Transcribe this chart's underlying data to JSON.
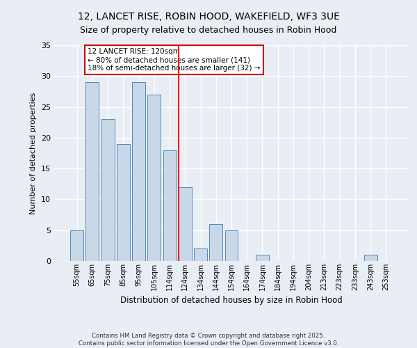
{
  "title1": "12, LANCET RISE, ROBIN HOOD, WAKEFIELD, WF3 3UE",
  "title2": "Size of property relative to detached houses in Robin Hood",
  "xlabel": "Distribution of detached houses by size in Robin Hood",
  "ylabel": "Number of detached properties",
  "categories": [
    "55sqm",
    "65sqm",
    "75sqm",
    "85sqm",
    "95sqm",
    "105sqm",
    "114sqm",
    "124sqm",
    "134sqm",
    "144sqm",
    "154sqm",
    "164sqm",
    "174sqm",
    "184sqm",
    "194sqm",
    "204sqm",
    "213sqm",
    "223sqm",
    "233sqm",
    "243sqm",
    "253sqm"
  ],
  "values": [
    5,
    29,
    23,
    19,
    29,
    27,
    18,
    12,
    2,
    6,
    5,
    0,
    1,
    0,
    0,
    0,
    0,
    0,
    0,
    1,
    0
  ],
  "bar_color": "#c8d8e8",
  "bar_edge_color": "#5588bb",
  "background_color": "#e8eef4",
  "grid_color": "#ffffff",
  "annotation_text": "12 LANCET RISE: 120sqm\n← 80% of detached houses are smaller (141)\n18% of semi-detached houses are larger (32) →",
  "annotation_box_color": "#ffffff",
  "annotation_box_edge": "#cc0000",
  "footer": "Contains HM Land Registry data © Crown copyright and database right 2025.\nContains public sector information licensed under the Open Government Licence v3.0.",
  "ylim": [
    0,
    35
  ],
  "yticks": [
    0,
    5,
    10,
    15,
    20,
    25,
    30,
    35
  ]
}
